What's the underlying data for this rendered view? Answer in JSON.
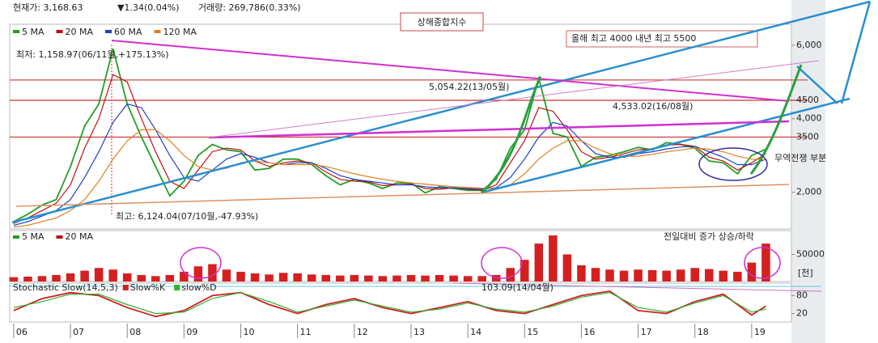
{
  "header": {
    "price": "현재가: 3,168.63",
    "change": "▼1.34(0.04%)",
    "volume": "거래량: 269,786(0.33%)"
  },
  "chart_data": [
    {
      "type": "line",
      "title": "상해종합지수",
      "xlim": [
        2005.93,
        2019.7
      ],
      "x": [
        2006,
        2006.25,
        2006.5,
        2006.75,
        2007,
        2007.25,
        2007.5,
        2007.75,
        2008,
        2008.25,
        2008.5,
        2008.75,
        2009,
        2009.25,
        2009.5,
        2009.75,
        2010,
        2010.25,
        2010.5,
        2010.75,
        2011,
        2011.25,
        2011.5,
        2011.75,
        2012,
        2012.25,
        2012.5,
        2012.75,
        2013,
        2013.25,
        2013.5,
        2013.75,
        2014,
        2014.25,
        2014.5,
        2014.75,
        2015,
        2015.25,
        2015.5,
        2015.75,
        2016,
        2016.25,
        2016.5,
        2016.75,
        2017,
        2017.25,
        2017.5,
        2017.75,
        2018,
        2018.25,
        2018.5,
        2018.75,
        2019,
        2019.25
      ],
      "series": [
        {
          "name": "5 MA",
          "color": "#22a022",
          "values": [
            1200,
            1400,
            1650,
            1800,
            2700,
            3800,
            4400,
            5900,
            4400,
            3500,
            2700,
            1900,
            2300,
            3000,
            3300,
            3150,
            3100,
            2600,
            2650,
            2900,
            2900,
            2750,
            2450,
            2200,
            2350,
            2250,
            2100,
            2250,
            2250,
            1980,
            2150,
            2100,
            2050,
            2050,
            2350,
            3200,
            3700,
            5100,
            3600,
            3500,
            2700,
            2950,
            3000,
            3100,
            3220,
            3150,
            3350,
            3300,
            3200,
            2850,
            2800,
            2500,
            3000,
            3170
          ]
        },
        {
          "name": "20 MA",
          "color": "#c01010",
          "values": [
            1150,
            1300,
            1500,
            1700,
            2200,
            3200,
            4000,
            5200,
            5000,
            4000,
            3100,
            2300,
            2100,
            2600,
            3100,
            3200,
            3150,
            2850,
            2700,
            2800,
            2850,
            2800,
            2550,
            2350,
            2300,
            2280,
            2180,
            2200,
            2220,
            2100,
            2080,
            2120,
            2080,
            2050,
            2200,
            2800,
            3400,
            4300,
            4200,
            3700,
            3100,
            2900,
            2950,
            3050,
            3150,
            3180,
            3280,
            3300,
            3250,
            2950,
            2850,
            2600,
            2800,
            3050
          ]
        },
        {
          "name": "60 MA",
          "color": "#2040c0",
          "values": [
            1100,
            1200,
            1350,
            1500,
            1800,
            2400,
            3100,
            3900,
            4400,
            4300,
            3700,
            3000,
            2400,
            2300,
            2600,
            2900,
            3050,
            2950,
            2800,
            2750,
            2800,
            2800,
            2650,
            2450,
            2350,
            2300,
            2250,
            2200,
            2200,
            2150,
            2120,
            2120,
            2100,
            2080,
            2120,
            2400,
            2900,
            3500,
            3900,
            3800,
            3400,
            3050,
            2950,
            2950,
            3050,
            3100,
            3180,
            3230,
            3250,
            3100,
            2950,
            2750,
            2750,
            2900
          ]
        },
        {
          "name": "120 MA",
          "color": "#e08020",
          "values": [
            1050,
            1100,
            1200,
            1300,
            1500,
            1800,
            2300,
            2900,
            3400,
            3700,
            3700,
            3400,
            3000,
            2700,
            2600,
            2650,
            2800,
            2850,
            2800,
            2750,
            2750,
            2750,
            2700,
            2600,
            2500,
            2420,
            2350,
            2300,
            2250,
            2220,
            2180,
            2150,
            2130,
            2110,
            2100,
            2200,
            2500,
            2900,
            3200,
            3400,
            3400,
            3200,
            3050,
            2980,
            2980,
            3030,
            3100,
            3150,
            3200,
            3170,
            3100,
            2980,
            2900,
            2880
          ]
        }
      ],
      "ylim": [
        1000,
        6570
      ],
      "yticks": [
        {
          "value": 2000,
          "label": "2,000"
        },
        {
          "value": 4000,
          "label": "4,000"
        },
        {
          "value": 6000,
          "label": "6,000"
        }
      ],
      "hlines": [
        {
          "value": 5054.22,
          "color": "#d05050"
        },
        {
          "value": 4500,
          "label": "4500",
          "color": "#d03030"
        },
        {
          "value": 3500,
          "label": "3500",
          "color": "#d03030"
        }
      ],
      "annotations": [
        "올해 최고 4000   내년 최고 5500",
        "5,054.22(13/05월)",
        "4,533.02(16/08월)",
        "최저: 1,158.97(06/11월,+175.13%)",
        "최고: 6,124.04(07/10월,-47.93%)",
        "무역전쟁 부분"
      ]
    },
    {
      "type": "bar",
      "legend": [
        {
          "name": "5 MA",
          "color": "#22a022"
        },
        {
          "name": "20 MA",
          "color": "#c01010"
        }
      ],
      "annotations": [
        "전일대비 증가 상승/하락",
        "103.09(14/04월)"
      ],
      "unit": "[천]",
      "xlim": [
        2005.93,
        2019.7
      ],
      "x": [
        2006,
        2006.25,
        2006.5,
        2006.75,
        2007,
        2007.25,
        2007.5,
        2007.75,
        2008,
        2008.25,
        2008.5,
        2008.75,
        2009,
        2009.25,
        2009.5,
        2009.75,
        2010,
        2010.25,
        2010.5,
        2010.75,
        2011,
        2011.25,
        2011.5,
        2011.75,
        2012,
        2012.25,
        2012.5,
        2012.75,
        2013,
        2013.25,
        2013.5,
        2013.75,
        2014,
        2014.25,
        2014.5,
        2014.75,
        2015,
        2015.25,
        2015.5,
        2015.75,
        2016,
        2016.25,
        2016.5,
        2016.75,
        2017,
        2017.25,
        2017.5,
        2017.75,
        2018,
        2018.25,
        2018.5,
        2018.75,
        2019,
        2019.25
      ],
      "values": [
        8000,
        9000,
        10000,
        12000,
        15000,
        20000,
        25000,
        22000,
        15000,
        12000,
        10000,
        12000,
        18000,
        28000,
        32000,
        22000,
        18000,
        15000,
        13000,
        16000,
        15000,
        13000,
        12000,
        11000,
        12000,
        11000,
        10000,
        11000,
        12000,
        11000,
        12000,
        11000,
        10000,
        10000,
        12000,
        25000,
        40000,
        70000,
        85000,
        50000,
        30000,
        25000,
        22000,
        20000,
        22000,
        21000,
        20000,
        22000,
        25000,
        23000,
        20000,
        18000,
        35000,
        70000
      ],
      "color": "#d42020",
      "ylim": [
        0,
        94000
      ],
      "yticks": [
        50000
      ]
    },
    {
      "type": "line",
      "title": "Stochastic Slow(14,5,3)",
      "xlim": [
        2005.93,
        2019.7
      ],
      "x": [
        2006,
        2006.5,
        2007,
        2007.5,
        2008,
        2008.5,
        2009,
        2009.5,
        2010,
        2010.5,
        2011,
        2011.5,
        2012,
        2012.5,
        2013,
        2013.5,
        2014,
        2014.5,
        2015,
        2015.5,
        2016,
        2016.5,
        2017,
        2017.5,
        2018,
        2018.5,
        2019,
        2019.25
      ],
      "series": [
        {
          "name": "Slow%K",
          "color": "#d02020",
          "values": [
            30,
            70,
            90,
            80,
            40,
            10,
            30,
            80,
            90,
            50,
            20,
            50,
            70,
            40,
            20,
            40,
            60,
            30,
            20,
            50,
            80,
            95,
            30,
            20,
            60,
            85,
            15,
            45
          ]
        },
        {
          "name": "slow%D",
          "color": "#30b030",
          "values": [
            40,
            60,
            85,
            85,
            50,
            20,
            25,
            70,
            90,
            60,
            25,
            45,
            65,
            45,
            25,
            35,
            55,
            35,
            25,
            45,
            75,
            90,
            40,
            25,
            55,
            80,
            25,
            35
          ]
        }
      ],
      "ylim": [
        0,
        100
      ],
      "yticks": [
        20,
        80
      ],
      "xticks": [
        {
          "value": 2006,
          "label": "06"
        },
        {
          "value": 2007,
          "label": "07"
        },
        {
          "value": 2008,
          "label": "08"
        },
        {
          "value": 2009,
          "label": "09"
        },
        {
          "value": 2010,
          "label": "10"
        },
        {
          "value": 2011,
          "label": "11"
        },
        {
          "value": 2012,
          "label": "12"
        },
        {
          "value": 2013,
          "label": "13"
        },
        {
          "value": 2014,
          "label": "14"
        },
        {
          "value": 2015,
          "label": "15"
        },
        {
          "value": 2016,
          "label": "16"
        },
        {
          "value": 2017,
          "label": "17"
        },
        {
          "value": 2018,
          "label": "18"
        },
        {
          "value": 2019,
          "label": "19"
        }
      ]
    }
  ]
}
